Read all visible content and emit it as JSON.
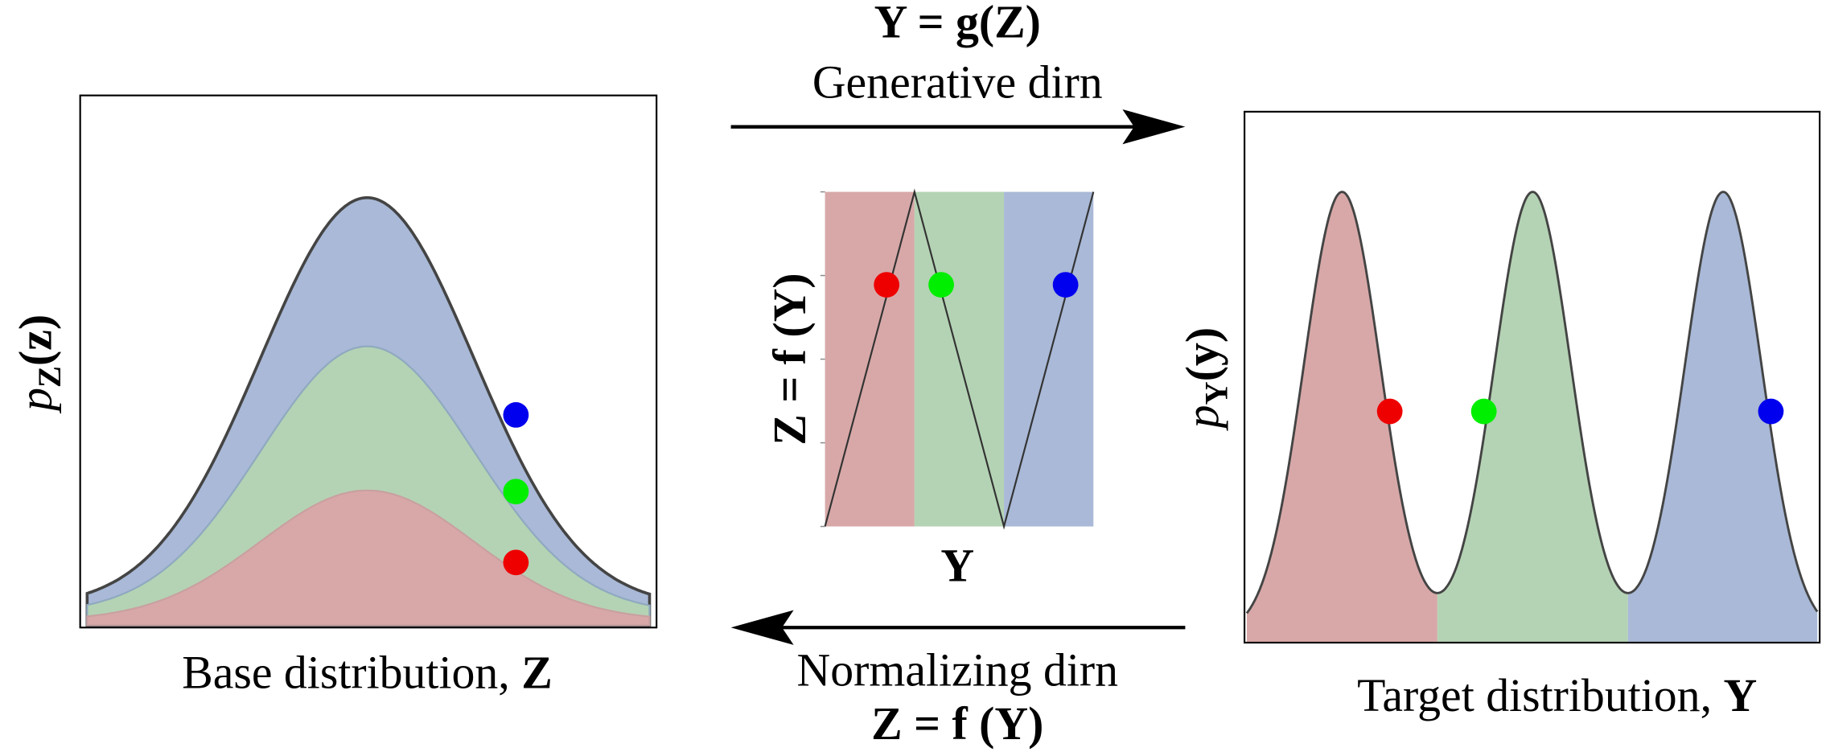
{
  "top_arrow": {
    "equation": "Y = g(Z)",
    "label": "Generative dirn"
  },
  "bottom_arrow": {
    "label": "Normalizing dirn",
    "equation": "Z = f (Y)"
  },
  "left_panel": {
    "y_label": {
      "symbol": "p",
      "subscript": "Z",
      "argument": "(z)"
    },
    "caption": {
      "text": "Base distribution,",
      "variable": "Z"
    }
  },
  "middle_panel": {
    "y_label": "Z = f (Y)",
    "x_label": "Y"
  },
  "right_panel": {
    "y_label": {
      "symbol": "p",
      "subscript": "Y",
      "argument": "(y)"
    },
    "caption": {
      "text": "Target distribution,",
      "variable": "Y"
    }
  }
}
